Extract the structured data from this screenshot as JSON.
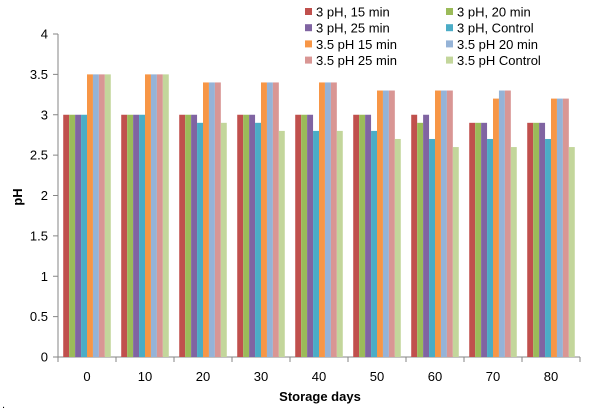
{
  "chart_data": {
    "type": "bar",
    "title": "",
    "xlabel": "Storage days",
    "ylabel": "pH",
    "categories": [
      "0",
      "10",
      "20",
      "30",
      "40",
      "50",
      "60",
      "70",
      "80"
    ],
    "ylim": [
      0,
      4
    ],
    "yticks": [
      "0",
      "0.5",
      "1",
      "1.5",
      "2",
      "2.5",
      "3",
      "3.5",
      "4"
    ],
    "grid": false,
    "legend_position": "top-right",
    "series": [
      {
        "name": "3 pH, 15 min",
        "color": "#C0504D",
        "values": [
          3.0,
          3.0,
          3.0,
          3.0,
          3.0,
          3.0,
          3.0,
          2.9,
          2.9
        ]
      },
      {
        "name": "3 pH, 20 min",
        "color": "#9BBB59",
        "values": [
          3.0,
          3.0,
          3.0,
          3.0,
          3.0,
          3.0,
          2.9,
          2.9,
          2.9
        ]
      },
      {
        "name": "3 pH, 25 min",
        "color": "#8064A2",
        "values": [
          3.0,
          3.0,
          3.0,
          3.0,
          3.0,
          3.0,
          3.0,
          2.9,
          2.9
        ]
      },
      {
        "name": "3 pH, Control",
        "color": "#4BACC6",
        "values": [
          3.0,
          3.0,
          2.9,
          2.9,
          2.8,
          2.8,
          2.7,
          2.7,
          2.7
        ]
      },
      {
        "name": "3.5 pH 15 min",
        "color": "#F79646",
        "values": [
          3.5,
          3.5,
          3.4,
          3.4,
          3.4,
          3.3,
          3.3,
          3.2,
          3.2
        ]
      },
      {
        "name": "3.5 pH 20 min",
        "color": "#95B3D7",
        "values": [
          3.5,
          3.5,
          3.4,
          3.4,
          3.4,
          3.3,
          3.3,
          3.3,
          3.2
        ]
      },
      {
        "name": "3.5 pH 25 min",
        "color": "#D99694",
        "values": [
          3.5,
          3.5,
          3.4,
          3.4,
          3.4,
          3.3,
          3.3,
          3.3,
          3.2
        ]
      },
      {
        "name": "3.5 pH Control",
        "color": "#C3D69B",
        "values": [
          3.5,
          3.5,
          2.9,
          2.8,
          2.8,
          2.7,
          2.6,
          2.6,
          2.6
        ]
      }
    ]
  },
  "stray_mark": "."
}
